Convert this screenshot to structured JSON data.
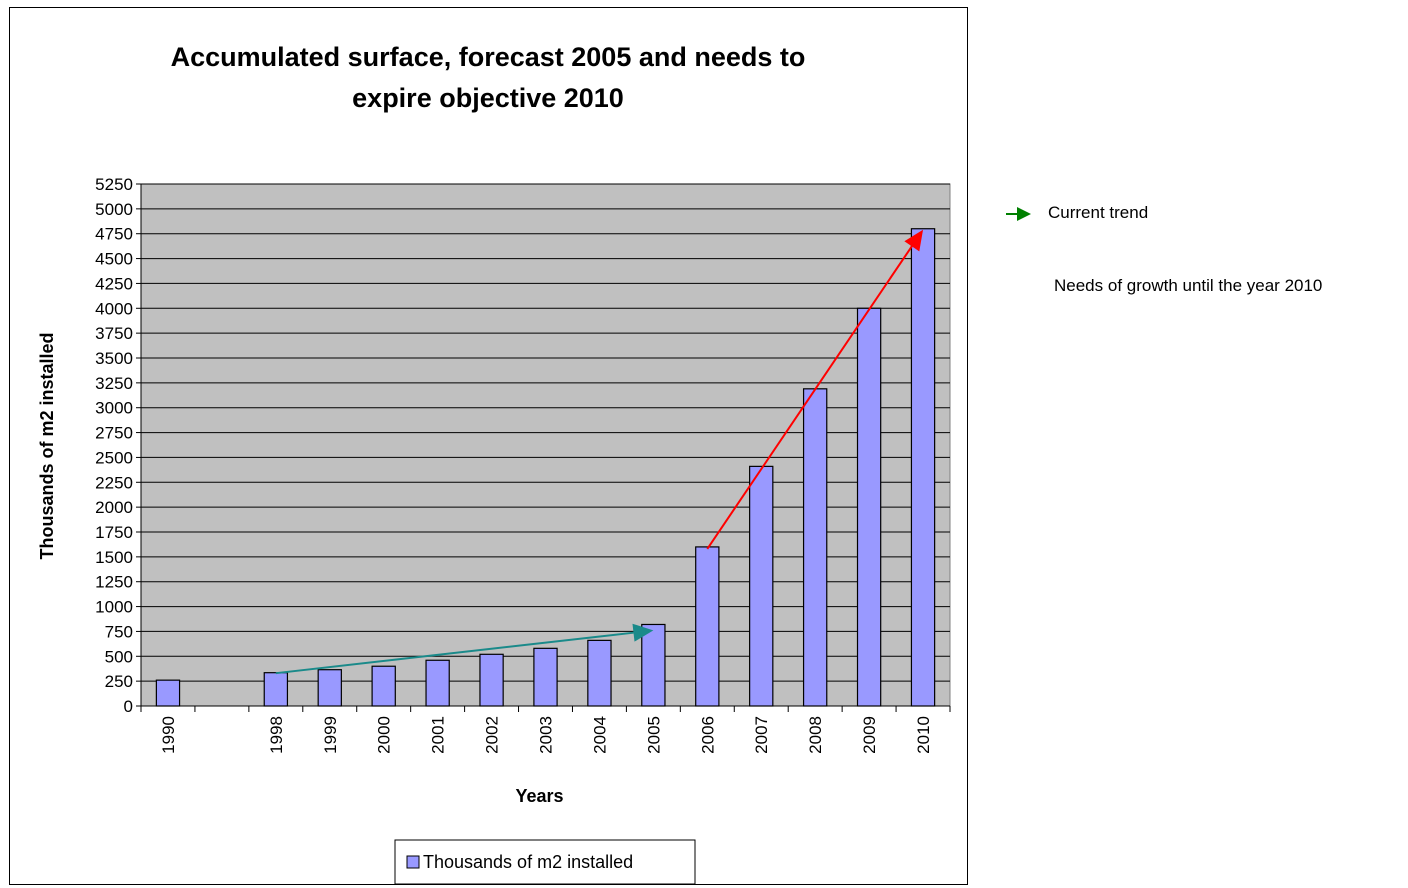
{
  "chart_data": {
    "type": "bar",
    "title_lines": [
      "Accumulated surface, forecast 2005 and needs to",
      "expire objective 2010"
    ],
    "xlabel": "Years",
    "ylabel": "Thousands of m2 installed",
    "categories": [
      "1990",
      "",
      "1998",
      "1999",
      "2000",
      "2001",
      "2002",
      "2003",
      "2004",
      "2005",
      "2006",
      "2007",
      "2008",
      "2009",
      "2010"
    ],
    "series": [
      {
        "name": "Thousands of m2 installed",
        "values": [
          260,
          null,
          335,
          365,
          400,
          460,
          520,
          580,
          660,
          820,
          1600,
          2410,
          3190,
          4000,
          4800
        ],
        "color": "#9999ff"
      }
    ],
    "ylim": [
      0,
      5250
    ],
    "ytick_step": 250,
    "grid": true,
    "plot_background": "#c0c0c0",
    "legend_position": "bottom",
    "annotations": [
      {
        "type": "arrow",
        "from": {
          "category": "1998",
          "y": 330
        },
        "to": {
          "category": "2005",
          "y": 760
        },
        "color": "#1a8a8a"
      },
      {
        "type": "arrow",
        "from": {
          "category": "2006",
          "y": 1580
        },
        "to": {
          "category": "2010",
          "y": 4790
        },
        "color": "#ff0000"
      }
    ]
  },
  "side_legend": {
    "current_trend_label": "Current trend",
    "current_trend_color": "#008000",
    "needs_label": "Needs of growth until the year 2010"
  }
}
